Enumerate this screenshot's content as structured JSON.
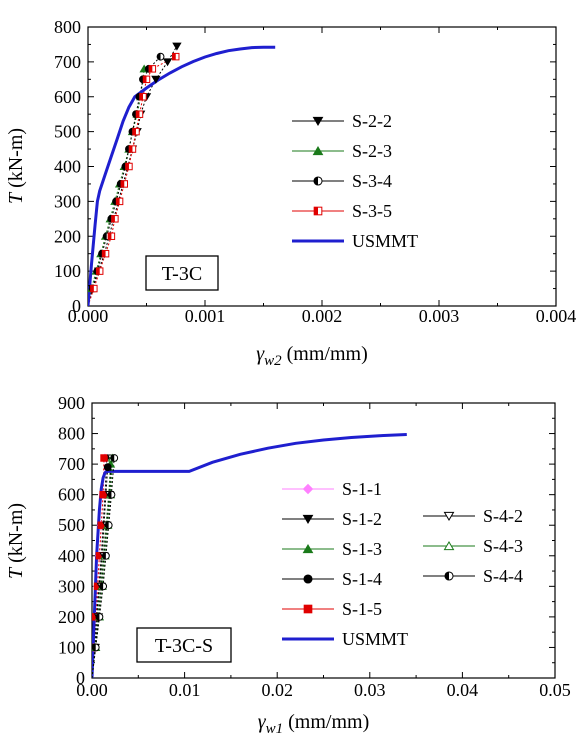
{
  "chart_data": [
    {
      "type": "line",
      "box_label": "T-3C",
      "ylabel_italic": "T",
      "ylabel_rest": " (kN-m)",
      "xlabel_sym": "γ",
      "xlabel_sub": "w2",
      "xlabel_rest": " (mm/mm)",
      "xlim": [
        0,
        0.004
      ],
      "ylim": [
        0,
        800
      ],
      "xticks": [
        0,
        0.001,
        0.002,
        0.003,
        0.004
      ],
      "xtick_labels": [
        "0.000",
        "0.001",
        "0.002",
        "0.003",
        "0.004"
      ],
      "yticks": [
        0,
        100,
        200,
        300,
        400,
        500,
        600,
        700,
        800
      ],
      "ytick_labels": [
        "0",
        "100",
        "200",
        "300",
        "400",
        "500",
        "600",
        "700",
        "800"
      ],
      "legend_placement": "middle-right",
      "series": [
        {
          "name": "S-2-2",
          "color": "#000000",
          "marker": "tri-down-filled",
          "x": [
            0,
            4e-05,
            9e-05,
            0.00014,
            0.00018,
            0.00022,
            0.00026,
            0.0003,
            0.00034,
            0.00038,
            0.00042,
            0.00045,
            0.0005,
            0.00058,
            0.00068,
            0.00076
          ],
          "y": [
            0,
            50,
            100,
            150,
            200,
            250,
            300,
            350,
            400,
            450,
            500,
            550,
            600,
            650,
            700,
            745
          ]
        },
        {
          "name": "S-2-3",
          "color": "#1a7a1a",
          "marker": "tri-up-filled",
          "x": [
            0,
            3e-05,
            7e-05,
            0.00011,
            0.00015,
            0.00019,
            0.00023,
            0.00027,
            0.00031,
            0.00035,
            0.00038,
            0.00042,
            0.00045,
            0.00048
          ],
          "y": [
            0,
            50,
            100,
            150,
            200,
            250,
            300,
            350,
            400,
            450,
            500,
            550,
            600,
            680
          ]
        },
        {
          "name": "S-3-4",
          "color": "#000000",
          "marker": "circle-half",
          "x": [
            0,
            4e-05,
            8e-05,
            0.00012,
            0.00016,
            0.0002,
            0.00024,
            0.00028,
            0.00032,
            0.00035,
            0.00038,
            0.00041,
            0.00044,
            0.00047,
            0.00052,
            0.00062
          ],
          "y": [
            0,
            50,
            100,
            150,
            200,
            250,
            300,
            350,
            400,
            450,
            500,
            550,
            600,
            650,
            680,
            715
          ]
        },
        {
          "name": "S-3-5",
          "color": "#e00000",
          "marker": "square-half",
          "x": [
            0,
            5e-05,
            0.0001,
            0.00015,
            0.0002,
            0.00023,
            0.00027,
            0.00031,
            0.00035,
            0.00038,
            0.00041,
            0.00044,
            0.00047,
            0.0005,
            0.00055,
            0.00075
          ],
          "y": [
            0,
            50,
            100,
            150,
            200,
            250,
            300,
            350,
            400,
            450,
            500,
            550,
            600,
            650,
            680,
            715
          ]
        },
        {
          "name": "USMMT",
          "color": "#1f1fcf",
          "marker": "none",
          "x": [
            0,
            3e-05,
            6e-05,
            8e-05,
            0.0001,
            0.00015,
            0.0002,
            0.00025,
            0.0003,
            0.00035,
            0.0004,
            0.0005,
            0.0006,
            0.0007,
            0.0008,
            0.0009,
            0.001,
            0.0011,
            0.0012,
            0.0013,
            0.0014,
            0.0015,
            0.0016
          ],
          "y": [
            0,
            120,
            230,
            300,
            330,
            380,
            430,
            480,
            530,
            570,
            600,
            625,
            648,
            668,
            686,
            701,
            714,
            724,
            732,
            737,
            741,
            742,
            742
          ]
        }
      ],
      "legend": [
        {
          "name": "S-2-2",
          "color": "#000000",
          "marker": "tri-down-filled"
        },
        {
          "name": "S-2-3",
          "color": "#1a7a1a",
          "marker": "tri-up-filled"
        },
        {
          "name": "S-3-4",
          "color": "#000000",
          "marker": "circle-half"
        },
        {
          "name": "S-3-5",
          "color": "#e00000",
          "marker": "square-half"
        },
        {
          "name": "USMMT",
          "color": "#1f1fcf",
          "marker": "none"
        }
      ]
    },
    {
      "type": "line",
      "box_label": "T-3C-S",
      "ylabel_italic": "T",
      "ylabel_rest": " (kN-m)",
      "xlabel_sym": "γ",
      "xlabel_sub": "w1",
      "xlabel_rest": " (mm/mm)",
      "xlim": [
        0,
        0.05
      ],
      "ylim": [
        0,
        900
      ],
      "xticks": [
        0,
        0.01,
        0.02,
        0.03,
        0.04,
        0.05
      ],
      "xtick_labels": [
        "0.00",
        "0.01",
        "0.02",
        "0.03",
        "0.04",
        "0.05"
      ],
      "yticks": [
        0,
        100,
        200,
        300,
        400,
        500,
        600,
        700,
        800,
        900
      ],
      "ytick_labels": [
        "0",
        "100",
        "200",
        "300",
        "400",
        "500",
        "600",
        "700",
        "800",
        "900"
      ],
      "legend_placement": "middle-center",
      "series": [
        {
          "name": "S-1-1",
          "color": "#ff80ff",
          "marker": "diamond-filled",
          "x": [
            0,
            0.0002,
            0.0004,
            0.0006,
            0.0008,
            0.001,
            0.0012,
            0.0014
          ],
          "y": [
            0,
            100,
            200,
            300,
            400,
            500,
            600,
            720
          ]
        },
        {
          "name": "S-1-2",
          "color": "#000000",
          "marker": "tri-down-filled",
          "x": [
            0,
            0.00025,
            0.0005,
            0.00075,
            0.001,
            0.0012,
            0.0014,
            0.0016
          ],
          "y": [
            0,
            100,
            200,
            300,
            400,
            500,
            600,
            720
          ]
        },
        {
          "name": "S-1-3",
          "color": "#1a7a1a",
          "marker": "tri-up-filled",
          "x": [
            0,
            0.0003,
            0.0006,
            0.0009,
            0.0012,
            0.0015,
            0.0018,
            0.002
          ],
          "y": [
            0,
            100,
            200,
            300,
            400,
            500,
            600,
            700
          ]
        },
        {
          "name": "S-1-4",
          "color": "#000000",
          "marker": "circle-filled",
          "x": [
            0,
            0.00025,
            0.0005,
            0.0008,
            0.0011,
            0.0013,
            0.0015,
            0.0017
          ],
          "y": [
            0,
            100,
            200,
            300,
            400,
            500,
            600,
            690
          ]
        },
        {
          "name": "S-1-5",
          "color": "#e00000",
          "marker": "square-filled",
          "x": [
            0,
            0.0002,
            0.0004,
            0.0006,
            0.0008,
            0.001,
            0.0012,
            0.0013
          ],
          "y": [
            0,
            100,
            200,
            300,
            400,
            500,
            600,
            720
          ]
        },
        {
          "name": "USMMT",
          "color": "#1f1fcf",
          "marker": "none",
          "x": [
            0,
            0.0005,
            0.0008,
            0.001,
            0.0012,
            0.0014,
            0.0016,
            0.002,
            0.0025,
            0.005,
            0.0105,
            0.013,
            0.016,
            0.019,
            0.022,
            0.025,
            0.028,
            0.031,
            0.034
          ],
          "y": [
            0,
            400,
            550,
            620,
            655,
            672,
            676,
            676,
            676,
            676,
            676,
            706,
            732,
            752,
            768,
            779,
            787,
            793,
            797
          ]
        },
        {
          "name": "S-4-2",
          "color": "#000000",
          "marker": "tri-down-open",
          "x": [
            0,
            0.00035,
            0.0007,
            0.001,
            0.0013,
            0.0016,
            0.0019,
            0.0021
          ],
          "y": [
            0,
            100,
            200,
            300,
            400,
            500,
            600,
            720
          ]
        },
        {
          "name": "S-4-3",
          "color": "#1a7a1a",
          "marker": "tri-up-open",
          "x": [
            0,
            0.0004,
            0.0008,
            0.0011,
            0.0014,
            0.0017,
            0.002,
            0.0022
          ],
          "y": [
            0,
            100,
            200,
            300,
            400,
            500,
            600,
            720
          ]
        },
        {
          "name": "S-4-4",
          "color": "#000000",
          "marker": "circle-half",
          "x": [
            0,
            0.0004,
            0.0008,
            0.0012,
            0.0015,
            0.0018,
            0.0021,
            0.0024
          ],
          "y": [
            0,
            100,
            200,
            300,
            400,
            500,
            600,
            720
          ]
        }
      ],
      "legend": [
        {
          "name": "S-1-1",
          "color": "#ff80ff",
          "marker": "diamond-filled"
        },
        {
          "name": "S-1-2",
          "color": "#000000",
          "marker": "tri-down-filled"
        },
        {
          "name": "S-1-3",
          "color": "#1a7a1a",
          "marker": "tri-up-filled"
        },
        {
          "name": "S-1-4",
          "color": "#000000",
          "marker": "circle-filled"
        },
        {
          "name": "S-1-5",
          "color": "#e00000",
          "marker": "square-filled"
        },
        {
          "name": "USMMT",
          "color": "#1f1fcf",
          "marker": "none"
        },
        {
          "name": "S-4-2",
          "color": "#000000",
          "marker": "tri-down-open"
        },
        {
          "name": "S-4-3",
          "color": "#1a7a1a",
          "marker": "tri-up-open"
        },
        {
          "name": "S-4-4",
          "color": "#000000",
          "marker": "circle-half"
        }
      ]
    }
  ]
}
